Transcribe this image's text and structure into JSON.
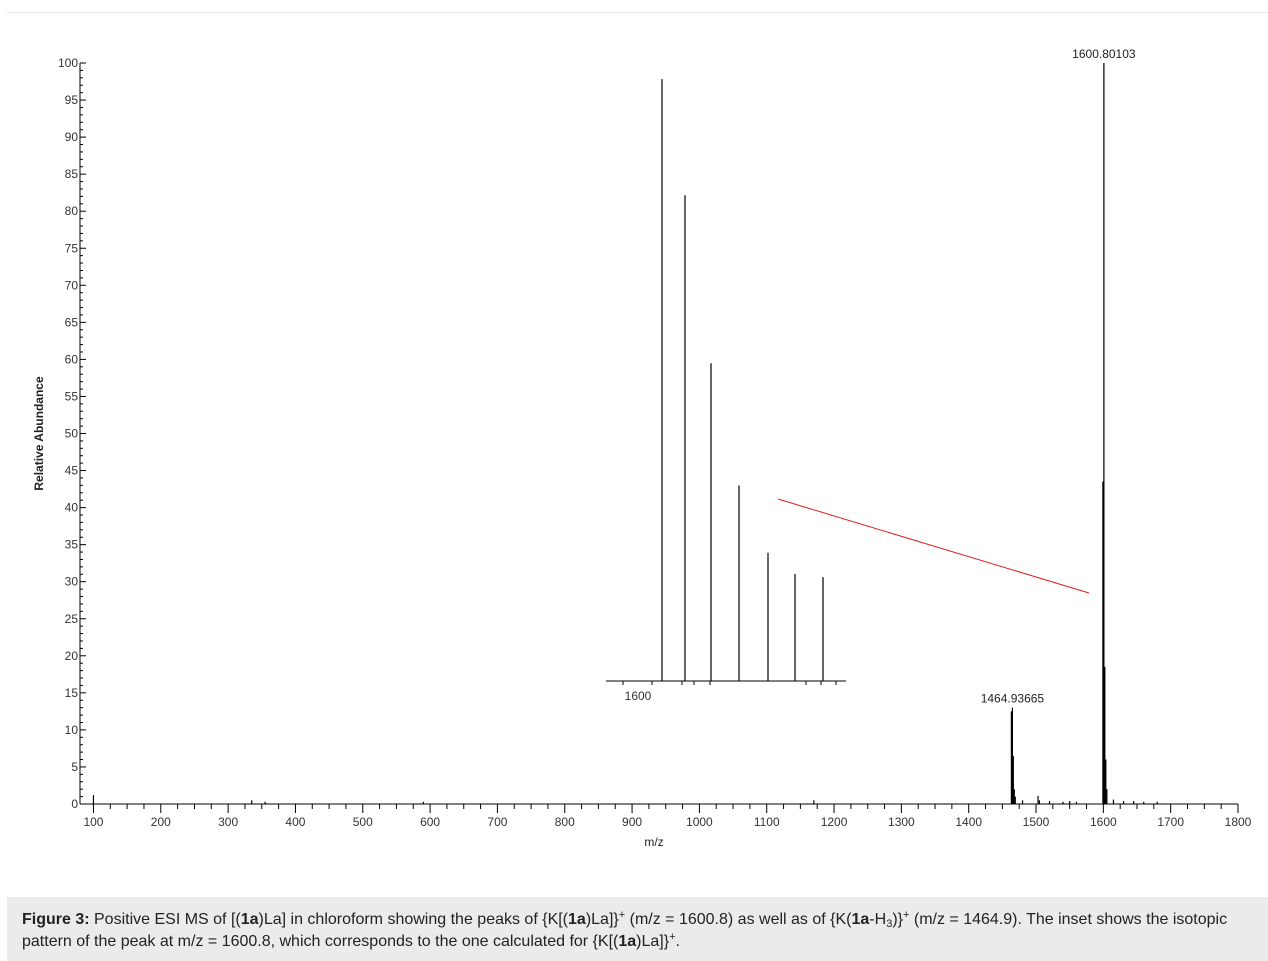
{
  "chart_data": {
    "type": "bar",
    "subtype": "mass-spectrum",
    "xlabel": "m/z",
    "ylabel": "Relative Abundance",
    "xlim": [
      80,
      1800
    ],
    "ylim": [
      0,
      100
    ],
    "x_ticks": [
      "100",
      "200",
      "300",
      "400",
      "500",
      "600",
      "700",
      "800",
      "900",
      "1000",
      "1100",
      "1200",
      "1300",
      "1400",
      "1500",
      "1600",
      "1700",
      "1800"
    ],
    "y_ticks": [
      "0",
      "5",
      "10",
      "15",
      "20",
      "25",
      "30",
      "35",
      "40",
      "45",
      "50",
      "55",
      "60",
      "65",
      "70",
      "75",
      "80",
      "85",
      "90",
      "95",
      "100"
    ],
    "peaks": [
      {
        "mz": 100,
        "abundance": 1.2
      },
      {
        "mz": 335,
        "abundance": 0.5
      },
      {
        "mz": 355,
        "abundance": 0.3
      },
      {
        "mz": 590,
        "abundance": 0.3
      },
      {
        "mz": 1170,
        "abundance": 0.5
      },
      {
        "mz": 1463.4,
        "abundance": 12.5
      },
      {
        "mz": 1464.94,
        "abundance": 13.0
      },
      {
        "mz": 1466.3,
        "abundance": 6.5
      },
      {
        "mz": 1467.7,
        "abundance": 2.0
      },
      {
        "mz": 1469.2,
        "abundance": 1.0
      },
      {
        "mz": 1480,
        "abundance": 0.5
      },
      {
        "mz": 1503,
        "abundance": 1.1
      },
      {
        "mz": 1505,
        "abundance": 0.5
      },
      {
        "mz": 1520,
        "abundance": 0.4
      },
      {
        "mz": 1540,
        "abundance": 0.3
      },
      {
        "mz": 1550,
        "abundance": 0.4
      },
      {
        "mz": 1560,
        "abundance": 0.3
      },
      {
        "mz": 1599.3,
        "abundance": 43.5
      },
      {
        "mz": 1600.80103,
        "abundance": 100
      },
      {
        "mz": 1602.2,
        "abundance": 18.5
      },
      {
        "mz": 1603.7,
        "abundance": 6.0
      },
      {
        "mz": 1605.2,
        "abundance": 2.0
      },
      {
        "mz": 1615,
        "abundance": 0.6
      },
      {
        "mz": 1630,
        "abundance": 0.4
      },
      {
        "mz": 1645,
        "abundance": 0.4
      },
      {
        "mz": 1660,
        "abundance": 0.3
      },
      {
        "mz": 1680,
        "abundance": 0.3
      }
    ],
    "peak_labels": [
      {
        "text": "1600.80103",
        "mz": 1600.80103,
        "abundance": 100
      },
      {
        "text": "1464.93665",
        "mz": 1464.93665,
        "abundance": 13.0
      }
    ],
    "inset": {
      "type": "bar",
      "description_label": "isotopic pattern",
      "x_tick_label": "1600",
      "peaks_relative": [
        98.5,
        79.5,
        52.0,
        32.0,
        21.0,
        17.5,
        17.0
      ],
      "connector_color": "#e02020"
    },
    "colors": {
      "spectrum": "#000000",
      "axis": "#000000"
    }
  },
  "caption": {
    "figure_label": "Figure 3:",
    "p1": " Positive ESI MS of [(",
    "c1": "1a",
    "p2": ")La] in chloroform showing the peaks of {K[(",
    "c2": "1a",
    "p3": ")La]}",
    "sup1": "+",
    "p4": " (m/z = 1600.8) as well as of {K(",
    "c3": "1a",
    "p5": "-H",
    "sub1": "3",
    "p6": ")}",
    "sup2": "+",
    "p7": " (m/z = 1464.9). The inset shows the isotopic pattern of the peak at m/z = 1600.8, which corresponds to the one calculated for {K[(",
    "c4": "1a",
    "p8": ")La]}",
    "sup3": "+",
    "p9": "."
  }
}
